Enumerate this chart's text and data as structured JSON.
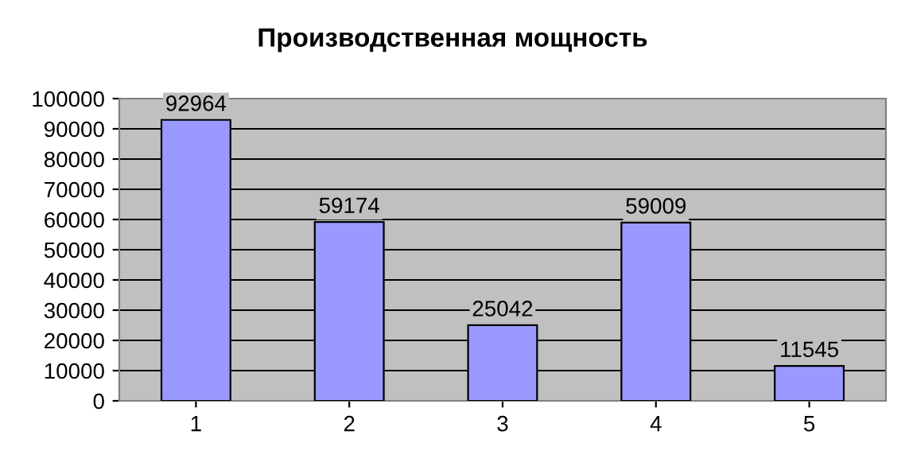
{
  "chart_data": {
    "type": "bar",
    "title": "Производственная мощность",
    "categories": [
      "1",
      "2",
      "3",
      "4",
      "5"
    ],
    "values": [
      92964,
      59174,
      25042,
      59009,
      11545
    ],
    "color": "#9999ff",
    "ylim": [
      0,
      100000
    ],
    "yticks": [
      0,
      10000,
      20000,
      30000,
      40000,
      50000,
      60000,
      70000,
      80000,
      90000,
      100000
    ],
    "grid": "y",
    "data_labels": true
  }
}
